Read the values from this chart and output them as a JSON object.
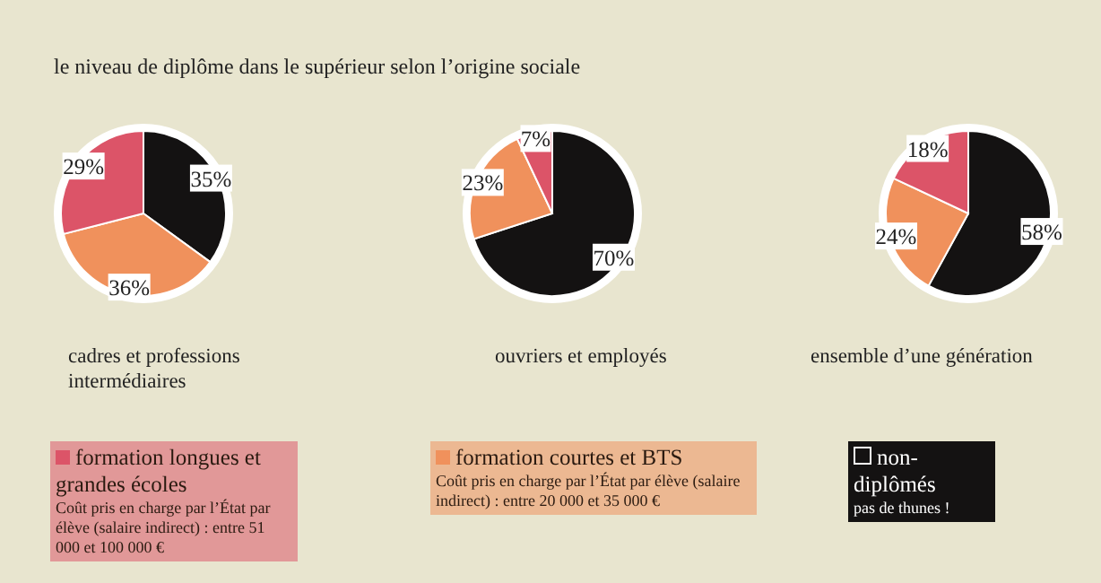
{
  "chart_data": [
    {
      "type": "pie",
      "title": "le niveau de diplôme dans le supérieur selon l’origine sociale",
      "xlabel": "cadres et professions intermédiaires",
      "categories": [
        "non-diplômés",
        "formation courtes et BTS",
        "formation longues et grandes écoles"
      ],
      "values": [
        35,
        36,
        29
      ],
      "value_labels": [
        "35%",
        "36%",
        "29%"
      ],
      "colors": [
        "#141212",
        "#f0915c",
        "#dc5468"
      ],
      "legend": "bottom",
      "annotations": [
        "pas de thunes !",
        "Coût pris en charge par l’État par élève (salaire indirect) : entre 20 000 et 35 000 €",
        "Coût pris en charge par l’État par élève (salaire indirect) : entre 51 000 et 100 000 €"
      ]
    },
    {
      "type": "pie",
      "xlabel": "ouvriers et employés",
      "categories": [
        null,
        null,
        null
      ],
      "values": [
        70,
        23,
        7
      ],
      "value_labels": [
        "70%",
        "23%",
        "7%"
      ],
      "colors": [
        "#141212",
        "#f0915c",
        "#dc5468"
      ]
    },
    {
      "type": "pie",
      "xlabel": "ensemble d’une génération",
      "categories": [
        null,
        null,
        null
      ],
      "values": [
        58,
        24,
        18
      ],
      "value_labels": [
        "58%",
        "24%",
        "18%"
      ],
      "colors": [
        "#141212",
        "#f0915c",
        "#dc5468"
      ]
    }
  ]
}
